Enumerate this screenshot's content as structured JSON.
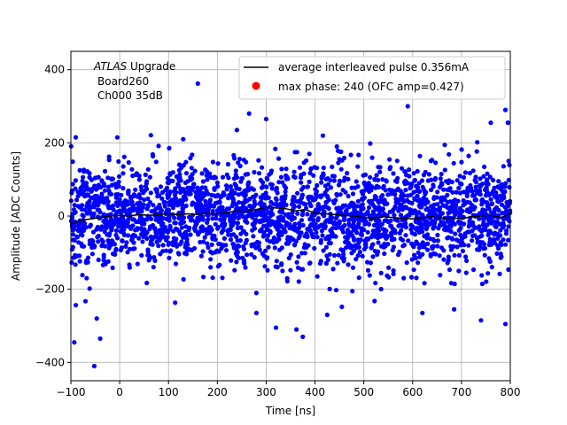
{
  "chart_data": {
    "type": "scatter",
    "xlabel": "Time [ns]",
    "ylabel": "Amplitude [ADC Counts]",
    "xlim": [
      -100,
      800
    ],
    "ylim": [
      -450,
      450
    ],
    "xticks": [
      -100,
      0,
      100,
      200,
      300,
      400,
      500,
      600,
      700,
      800
    ],
    "yticks": [
      -400,
      -200,
      0,
      200,
      400
    ],
    "grid": true,
    "legend_position": "top-right",
    "annotation": {
      "line1_italic": "ATLAS",
      "line1_rest": " Upgrade",
      "line2": "Board260",
      "line3": "Ch000 35dB"
    },
    "series": [
      {
        "name": "average interleaved pulse 0.356mA",
        "kind": "line",
        "color": "#000000",
        "x": [
          -100,
          -80,
          -60,
          -40,
          -20,
          0,
          20,
          40,
          60,
          80,
          100,
          120,
          140,
          160,
          180,
          200,
          220,
          240,
          260,
          280,
          300,
          320,
          340,
          360,
          380,
          400,
          420,
          440,
          460,
          480,
          500,
          520,
          540,
          560,
          580,
          600,
          620,
          640,
          660,
          680,
          700,
          720,
          740,
          760,
          780,
          800
        ],
        "y": [
          -22,
          -12,
          -8,
          -4,
          0,
          2,
          0,
          4,
          2,
          4,
          6,
          4,
          6,
          4,
          8,
          6,
          10,
          14,
          12,
          18,
          24,
          22,
          20,
          14,
          18,
          8,
          6,
          4,
          2,
          0,
          -4,
          -6,
          -2,
          -4,
          -6,
          -8,
          -4,
          -2,
          -6,
          -4,
          -8,
          -2,
          0,
          2,
          -4,
          4
        ]
      },
      {
        "name": "max phase: 240 (OFC amp=0.427)",
        "kind": "scatter",
        "color": "#0000ff",
        "legend_color": "#ff0000",
        "band_mean": 0,
        "band_sigma": 70,
        "x_range": [
          -100,
          800
        ],
        "outliers": [
          {
            "x": -93,
            "y": -345
          },
          {
            "x": -52,
            "y": -410
          },
          {
            "x": -40,
            "y": -335
          },
          {
            "x": -47,
            "y": -280
          },
          {
            "x": 160,
            "y": 362
          },
          {
            "x": 280,
            "y": -265
          },
          {
            "x": 320,
            "y": -305
          },
          {
            "x": 375,
            "y": -330
          },
          {
            "x": 362,
            "y": -310
          },
          {
            "x": 425,
            "y": -270
          },
          {
            "x": 455,
            "y": -248
          },
          {
            "x": 620,
            "y": -265
          },
          {
            "x": 685,
            "y": -255
          },
          {
            "x": 740,
            "y": -285
          },
          {
            "x": 790,
            "y": -295
          },
          {
            "x": 590,
            "y": 300
          },
          {
            "x": 795,
            "y": 255
          },
          {
            "x": 790,
            "y": 290
          },
          {
            "x": 265,
            "y": 280
          },
          {
            "x": 300,
            "y": 265
          },
          {
            "x": 130,
            "y": 210
          },
          {
            "x": 760,
            "y": 255
          },
          {
            "x": 240,
            "y": 235
          },
          {
            "x": -90,
            "y": 215
          }
        ]
      }
    ]
  }
}
